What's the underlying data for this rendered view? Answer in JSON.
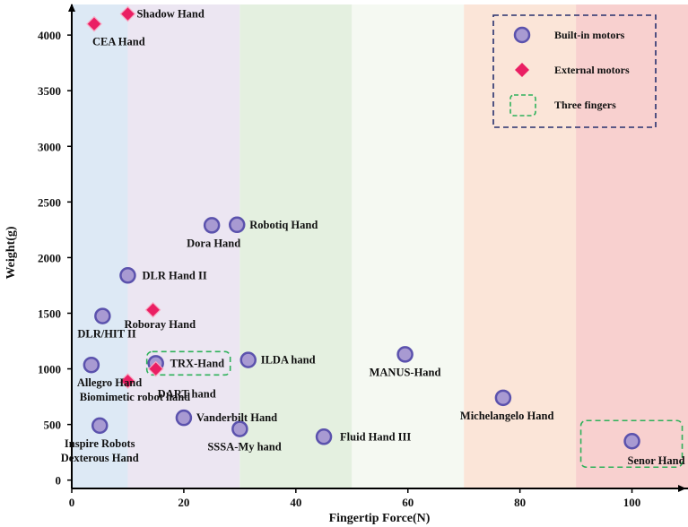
{
  "chart_data": {
    "type": "scatter",
    "title": "",
    "xlabel": "Fingertip Force(N)",
    "ylabel": "Weight(g)",
    "xlim": [
      0,
      110
    ],
    "ylim": [
      -75,
      4275
    ],
    "x_ticks": [
      0,
      20,
      40,
      60,
      80,
      100
    ],
    "y_ticks": [
      0,
      500,
      1000,
      1500,
      2000,
      2500,
      3000,
      3500,
      4000
    ],
    "bands": [
      {
        "from": 0,
        "to": 10,
        "color": "#dde9f5"
      },
      {
        "from": 10,
        "to": 30,
        "color": "#ece6f2"
      },
      {
        "from": 30,
        "to": 50,
        "color": "#e4f0e0"
      },
      {
        "from": 50,
        "to": 70,
        "color": "#f5f9f2"
      },
      {
        "from": 70,
        "to": 90,
        "color": "#fbe5d8"
      },
      {
        "from": 90,
        "to": 110,
        "color": "#f8d0cf"
      }
    ],
    "legend": {
      "position": "top-right",
      "entries": [
        {
          "label": "Built-in motors",
          "marker": "circle"
        },
        {
          "label": "External motors",
          "marker": "diamond"
        },
        {
          "label": "Three fingers",
          "marker": "dashed-box"
        }
      ]
    },
    "series": [
      {
        "name": "Built-in motors",
        "marker": "circle",
        "color": "#a89ad2",
        "edge_color": "#5b52ad",
        "points": [
          {
            "x": 25,
            "y": 2290,
            "label": "Dora Hand"
          },
          {
            "x": 29.5,
            "y": 2295,
            "label": "Robotiq Hand"
          },
          {
            "x": 10,
            "y": 1840,
            "label": "DLR Hand II"
          },
          {
            "x": 5.5,
            "y": 1475,
            "label": "DLR/HIT II"
          },
          {
            "x": 3.5,
            "y": 1035,
            "label": "Allegro Hand"
          },
          {
            "x": 15,
            "y": 1050,
            "label": "TRX-Hand"
          },
          {
            "x": 31.5,
            "y": 1080,
            "label": "ILDA hand"
          },
          {
            "x": 59.5,
            "y": 1130,
            "label": "MANUS-Hand"
          },
          {
            "x": 77,
            "y": 740,
            "label": "Michelangelo Hand"
          },
          {
            "x": 20,
            "y": 560,
            "label": "Vanderbilt Hand"
          },
          {
            "x": 30,
            "y": 460,
            "label": "SSSA-My hand"
          },
          {
            "x": 45,
            "y": 390,
            "label": "Fluid Hand III"
          },
          {
            "x": 5,
            "y": 490,
            "label": "Inspire Robots Dexterous Hand"
          },
          {
            "x": 100,
            "y": 350,
            "label": "Senor Hand"
          }
        ]
      },
      {
        "name": "External motors",
        "marker": "diamond",
        "color": "#ea1f63",
        "points": [
          {
            "x": 10,
            "y": 4190,
            "label": "Shadow Hand"
          },
          {
            "x": 4,
            "y": 4100,
            "label": "CEA Hand"
          },
          {
            "x": 14.5,
            "y": 1530,
            "label": "Roboray Hand"
          },
          {
            "x": 15,
            "y": 1000,
            "label": "DART hand"
          },
          {
            "x": 10,
            "y": 890,
            "label": "Biomimetic robot hand"
          }
        ]
      }
    ],
    "highlight_boxes": [
      {
        "label": "Three fingers",
        "encloses": "TRX-Hand"
      },
      {
        "label": "Three fingers",
        "encloses": "Senor Hand"
      }
    ]
  }
}
